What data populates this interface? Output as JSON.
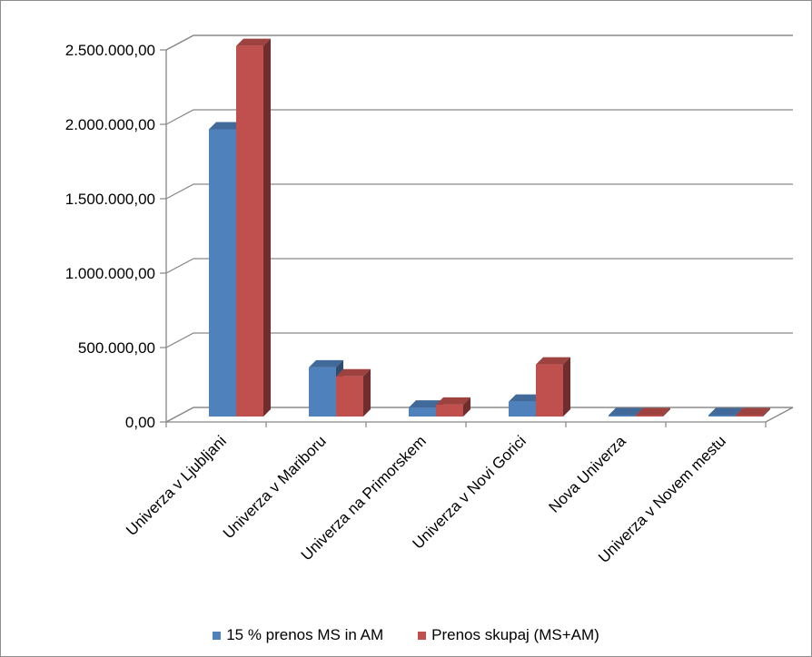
{
  "chart_data": {
    "type": "bar",
    "style": "3d-clustered-column",
    "categories": [
      "Univerza v Ljubljani",
      "Univerza v Mariboru",
      "Univerza na Primorskem",
      "Univerza v Novi Gorici",
      "Nova Univerza",
      "Univerza v Novem mestu"
    ],
    "series": [
      {
        "name": "15 % prenos MS in AM",
        "color": "#4f81bd",
        "values": [
          1930000,
          330000,
          60000,
          100000,
          0,
          0
        ]
      },
      {
        "name": "Prenos skupaj (MS+AM)",
        "color": "#c0504d",
        "values": [
          2490000,
          270000,
          80000,
          350000,
          0,
          0
        ]
      }
    ],
    "yticks": [
      "0,00",
      "500.000,00",
      "1.000.000,00",
      "1.500.000,00",
      "2.000.000,00",
      "2.500.000,00"
    ],
    "ylim": [
      0,
      2500000
    ],
    "grid": true,
    "legend": "bottom"
  }
}
